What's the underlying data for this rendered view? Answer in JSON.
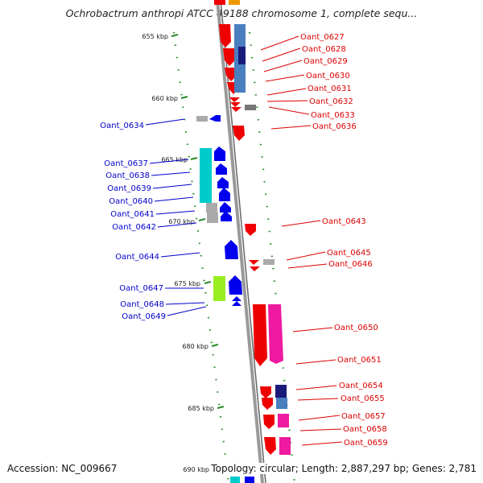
{
  "header": {
    "title": "Ochrobactrum anthropi ATCC 49188 chromosome 1, complete sequ..."
  },
  "footer": {
    "accession": "Accession: NC_009667",
    "stats": "Topology: circular; Length: 2,887,297 bp; Genes: 2,781"
  },
  "ticks": [
    "655 kbp",
    "660 kbp",
    "665 kbp",
    "670 kbp",
    "675 kbp",
    "680 kbp",
    "685 kbp",
    "690 kbp"
  ],
  "reverse_labels": [
    "Oant_0634",
    "Oant_0637",
    "Oant_0638",
    "Oant_0639",
    "Oant_0640",
    "Oant_0641",
    "Oant_0642",
    "Oant_0644",
    "Oant_0647",
    "Oant_0648",
    "Oant_0649"
  ],
  "forward_labels": [
    "Oant_0627",
    "Oant_0628",
    "Oant_0629",
    "Oant_0630",
    "Oant_0631",
    "Oant_0632",
    "Oant_0633",
    "Oant_0636",
    "Oant_0643",
    "Oant_0645",
    "Oant_0646",
    "Oant_0650",
    "Oant_0651",
    "Oant_0654",
    "Oant_0655",
    "Oant_0657",
    "Oant_0658",
    "Oant_0659"
  ],
  "colors": {
    "forward_label": "#dd0000",
    "reverse_label": "#0000cc",
    "tick": "#2a8a2a",
    "backbone": "#999999",
    "forward_gene": "#ee0000",
    "reverse_gene": "#0000ee",
    "steelblue": "#4a7fbf",
    "navy": "#1a1a7a",
    "cyan": "#00cccc",
    "magenta": "#ee1aa0",
    "limegreen": "#99ee22",
    "orange": "#ee9900",
    "grey": "#aaaaaa",
    "darkgrey": "#777777"
  }
}
